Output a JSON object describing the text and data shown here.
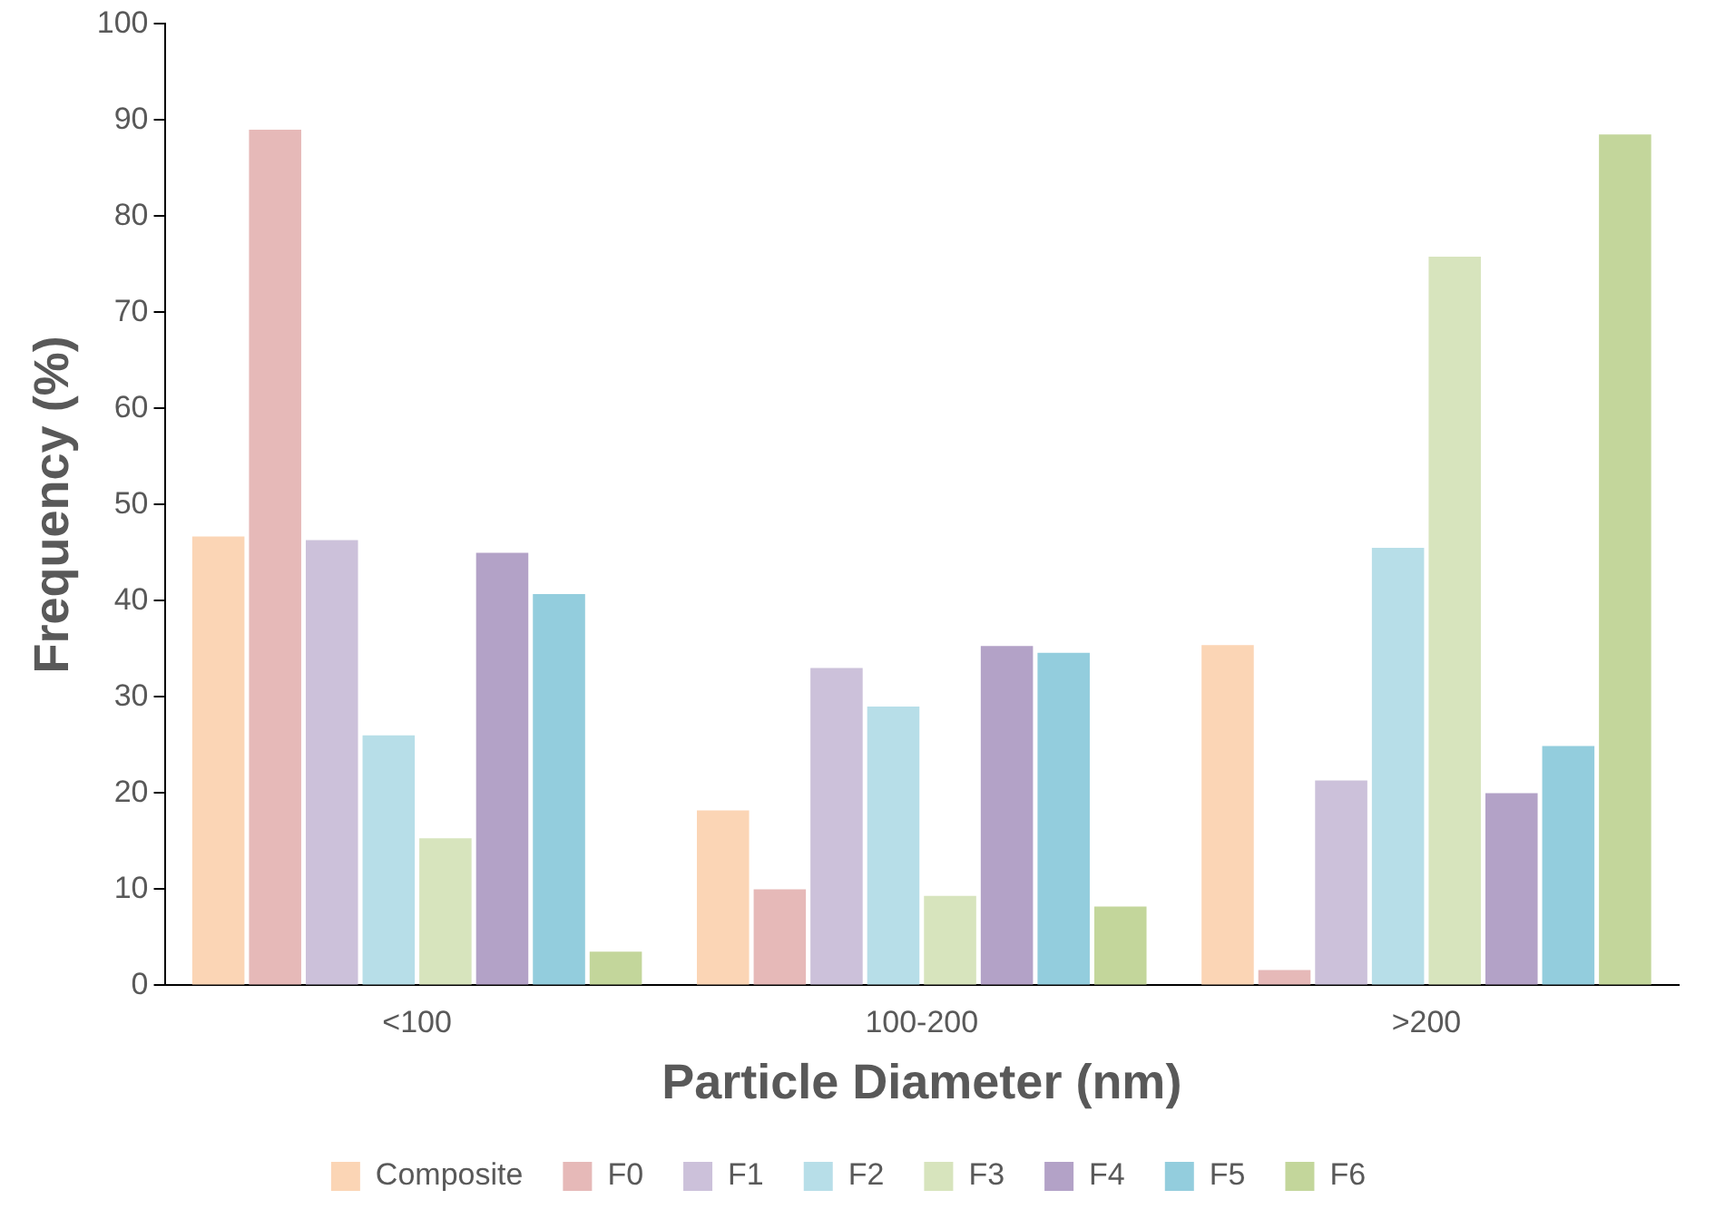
{
  "chart_data": {
    "type": "bar",
    "xlabel": "Particle Diameter (nm)",
    "ylabel": "Frequency (%)",
    "categories": [
      "<100",
      "100-200",
      ">200"
    ],
    "series": [
      {
        "name": "Composite",
        "color": "#fbd5b5",
        "values": [
          46.7,
          18.2,
          35.4
        ]
      },
      {
        "name": "F0",
        "color": "#e6b9b8",
        "values": [
          89,
          10,
          1.6
        ]
      },
      {
        "name": "F1",
        "color": "#ccc1da",
        "values": [
          46.3,
          33,
          21.3
        ]
      },
      {
        "name": "F2",
        "color": "#b7dee8",
        "values": [
          26,
          29,
          45.5
        ]
      },
      {
        "name": "F3",
        "color": "#d7e4bd",
        "values": [
          15.3,
          9.3,
          75.8
        ]
      },
      {
        "name": "F4",
        "color": "#b3a2c7",
        "values": [
          45,
          35.3,
          20
        ]
      },
      {
        "name": "F5",
        "color": "#93cddd",
        "values": [
          40.7,
          34.6,
          24.9
        ]
      },
      {
        "name": "F6",
        "color": "#c3d69b",
        "values": [
          3.5,
          8.2,
          88.5
        ]
      }
    ],
    "ylim": [
      0,
      100
    ],
    "yticks": [
      0,
      10,
      20,
      30,
      40,
      50,
      60,
      70,
      80,
      90,
      100
    ],
    "grid": false,
    "legend": "bottom"
  }
}
